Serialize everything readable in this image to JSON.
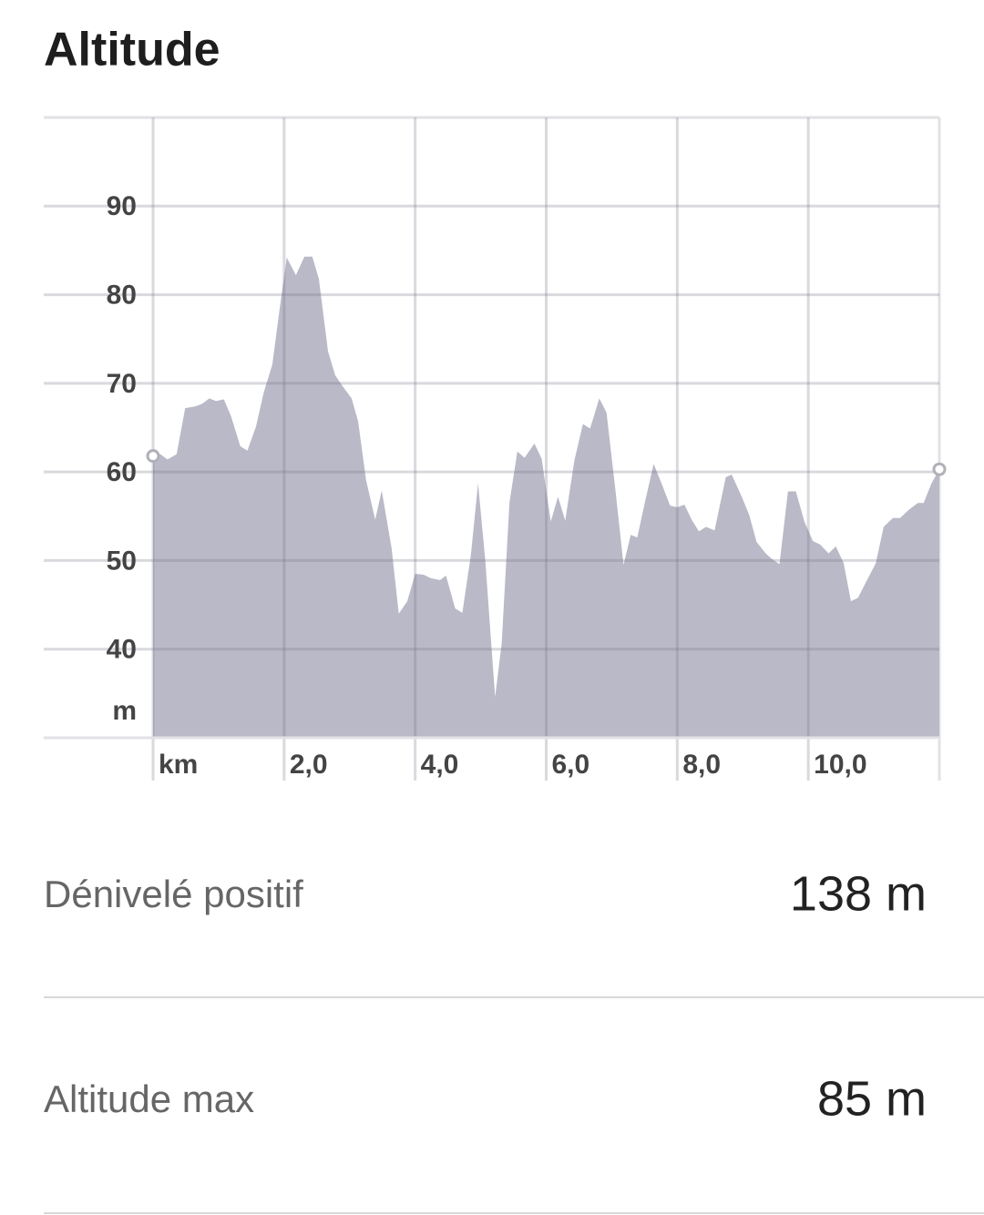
{
  "chart_data": {
    "type": "area",
    "title": "Altitude",
    "x": [
      0,
      0.11,
      0.22,
      0.36,
      0.49,
      0.65,
      0.75,
      0.86,
      0.96,
      1.08,
      1.19,
      1.33,
      1.44,
      1.57,
      1.69,
      1.82,
      1.93,
      2.04,
      2.18,
      2.31,
      2.43,
      2.53,
      2.67,
      2.78,
      2.9,
      3.03,
      3.13,
      3.25,
      3.39,
      3.49,
      3.64,
      3.75,
      3.88,
      4.0,
      4.13,
      4.24,
      4.38,
      4.47,
      4.61,
      4.72,
      4.85,
      4.96,
      5.07,
      5.22,
      5.32,
      5.44,
      5.56,
      5.67,
      5.82,
      5.93,
      6.07,
      6.18,
      6.29,
      6.43,
      6.56,
      6.67,
      6.81,
      6.92,
      7.06,
      7.18,
      7.29,
      7.39,
      7.51,
      7.64,
      7.76,
      7.89,
      8.0,
      8.11,
      8.22,
      8.33,
      8.44,
      8.57,
      8.74,
      8.83,
      8.99,
      9.1,
      9.21,
      9.35,
      9.44,
      9.56,
      9.69,
      9.81,
      9.94,
      10.07,
      10.18,
      10.31,
      10.42,
      10.54,
      10.65,
      10.76,
      10.89,
      11.03,
      11.15,
      11.29,
      11.4,
      11.53,
      11.67,
      11.76,
      11.88,
      12.0
    ],
    "values": [
      61.8,
      62,
      61.4,
      62,
      67.2,
      67.4,
      67.7,
      68.3,
      68,
      68.2,
      66.3,
      62.9,
      62.4,
      65.1,
      69,
      72.1,
      78.3,
      84.2,
      82.2,
      84.3,
      84.3,
      81.8,
      73.6,
      70.9,
      69.6,
      68.3,
      65.7,
      59.1,
      54.6,
      57.9,
      51.4,
      44,
      45.4,
      48.5,
      48.4,
      48,
      47.8,
      48.3,
      44.6,
      44.1,
      50.6,
      58.7,
      50,
      34.6,
      40.6,
      56.6,
      62.3,
      61.6,
      63.2,
      61.5,
      54.4,
      57.2,
      54.5,
      61.3,
      65.4,
      64.9,
      68.3,
      66.7,
      57.7,
      49.5,
      52.9,
      52.6,
      56.7,
      60.9,
      58.7,
      56.2,
      56,
      56.3,
      54.6,
      53.3,
      53.8,
      53.4,
      59.4,
      59.7,
      57.1,
      55.1,
      52.1,
      50.8,
      50.2,
      49.6,
      57.8,
      57.8,
      54.4,
      52.2,
      51.8,
      50.8,
      51.6,
      49.7,
      45.4,
      45.8,
      47.7,
      49.7,
      53.8,
      54.8,
      54.8,
      55.7,
      56.5,
      56.5,
      58.7,
      60.3
    ],
    "color": "#b9b9c7",
    "xlim": [
      0,
      12
    ],
    "ylim": [
      30,
      100
    ],
    "xticks": [
      {
        "value": 0,
        "label": "km"
      },
      {
        "value": 2,
        "label": "2,0"
      },
      {
        "value": 4,
        "label": "4,0"
      },
      {
        "value": 6,
        "label": "6,0"
      },
      {
        "value": 8,
        "label": "8,0"
      },
      {
        "value": 10,
        "label": "10,0"
      }
    ],
    "yticks": [
      40,
      50,
      60,
      70,
      80,
      90
    ],
    "y_unit": "m",
    "grid": true
  },
  "stats": [
    {
      "label": "Dénivelé positif",
      "value": "138 m"
    },
    {
      "label": "Altitude max",
      "value": "85 m"
    }
  ]
}
